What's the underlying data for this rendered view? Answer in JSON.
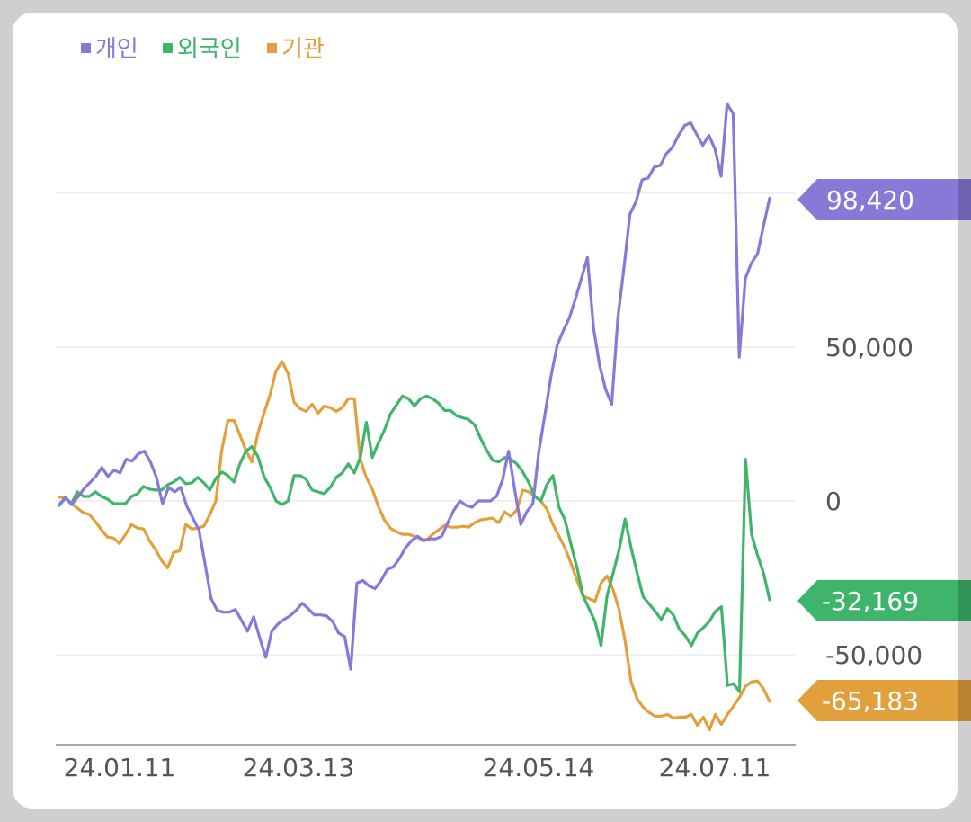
{
  "chart_data": {
    "type": "line",
    "legend_position": "top-left",
    "grid": "horizontal",
    "x_tick_labels": [
      "24.01.11",
      "24.03.13",
      "24.05.14",
      "24.07.11"
    ],
    "y_ticks": [
      {
        "value": 50000,
        "label": "50,000"
      },
      {
        "value": 0,
        "label": "0"
      },
      {
        "value": -50000,
        "label": "-50,000"
      }
    ],
    "series": [
      {
        "name": "개인",
        "color": "#8878d8",
        "end_label": "98,420",
        "values": [
          -1180,
          1170,
          -1180,
          1170,
          3820,
          5880,
          7940,
          10880,
          7940,
          10000,
          9120,
          13530,
          12940,
          15290,
          16180,
          12650,
          7650,
          -880,
          4410,
          2940,
          4410,
          -1760,
          -5590,
          -9410,
          -20590,
          -31760,
          -35590,
          -36180,
          -36180,
          -35290,
          -38820,
          -42350,
          -37650,
          -44410,
          -50880,
          -42350,
          -40000,
          -38530,
          -37350,
          -35590,
          -33240,
          -35000,
          -37060,
          -37060,
          -37350,
          -39120,
          -42940,
          -44120,
          -54710,
          -26760,
          -25880,
          -27650,
          -28530,
          -25880,
          -22350,
          -21470,
          -18820,
          -15290,
          -12940,
          -11470,
          -12940,
          -12350,
          -12350,
          -11470,
          -7060,
          -2940,
          0,
          -1470,
          -2060,
          0,
          0,
          0,
          1470,
          6760,
          16180,
          3820,
          -7650,
          -3530,
          -880,
          16180,
          28240,
          40590,
          50590,
          55290,
          59410,
          65590,
          72350,
          79120,
          56180,
          44120,
          36180,
          31470,
          59410,
          75590,
          93240,
          97350,
          104410,
          105000,
          108530,
          109120,
          112940,
          115000,
          118820,
          122060,
          122940,
          119120,
          115590,
          118820,
          114410,
          105590,
          129120,
          125880,
          46760,
          72350,
          77350,
          80290,
          89410,
          98420
        ]
      },
      {
        "name": "외국인",
        "color": "#3fb56b",
        "end_label": "-32,169",
        "values": [
          -1470,
          880,
          -880,
          2940,
          1470,
          1470,
          2940,
          1470,
          590,
          -880,
          -880,
          -880,
          1470,
          2350,
          4710,
          3820,
          3530,
          3530,
          5290,
          6180,
          7650,
          5590,
          5880,
          7650,
          5880,
          3530,
          7350,
          9410,
          8240,
          6180,
          12060,
          16180,
          17650,
          14410,
          7940,
          4410,
          0,
          -1180,
          0,
          8240,
          8240,
          7060,
          3530,
          2940,
          2350,
          4410,
          7650,
          9120,
          12060,
          9120,
          14120,
          25590,
          14120,
          18820,
          22940,
          28240,
          31180,
          34120,
          33240,
          30880,
          33240,
          34120,
          33240,
          31760,
          29410,
          29410,
          27650,
          27060,
          26470,
          24710,
          20290,
          16470,
          13240,
          12650,
          14120,
          13530,
          12060,
          9410,
          5880,
          1470,
          0,
          5290,
          8240,
          -2060,
          -6180,
          -14120,
          -21760,
          -30880,
          -35000,
          -39120,
          -47060,
          -30880,
          -23530,
          -15880,
          -5880,
          -15290,
          -23530,
          -31180,
          -33530,
          -35880,
          -38530,
          -35000,
          -37060,
          -41760,
          -43820,
          -47060,
          -42940,
          -41180,
          -39120,
          -35880,
          -34410,
          -60000,
          -59410,
          -62060,
          13530,
          -10880,
          -17650,
          -23530,
          -32169
        ]
      },
      {
        "name": "기관",
        "color": "#e2a03c",
        "end_label": "-65,183",
        "values": [
          1180,
          1180,
          -880,
          -2350,
          -3820,
          -4410,
          -6760,
          -9410,
          -11760,
          -12060,
          -13820,
          -10880,
          -7650,
          -8820,
          -9120,
          -12940,
          -15880,
          -19410,
          -21760,
          -16760,
          -16180,
          -7650,
          -9120,
          -8820,
          -8240,
          -4410,
          0,
          16760,
          26180,
          26180,
          21470,
          16470,
          12650,
          22060,
          28530,
          34410,
          42350,
          45290,
          41470,
          32060,
          30000,
          29120,
          31470,
          28530,
          30880,
          30290,
          29120,
          30290,
          33240,
          33240,
          13530,
          7650,
          3820,
          -1760,
          -6180,
          -8820,
          -10000,
          -10880,
          -10880,
          -11470,
          -12350,
          -12650,
          -10880,
          -9410,
          -7940,
          -8530,
          -8530,
          -8240,
          -8530,
          -7060,
          -6180,
          -5880,
          -5590,
          -7060,
          -3530,
          -5000,
          -2940,
          3530,
          2940,
          1470,
          0,
          -2650,
          -7650,
          -11470,
          -15290,
          -20290,
          -25880,
          -30880,
          -31760,
          -32650,
          -26760,
          -24410,
          -28820,
          -35290,
          -45590,
          -58820,
          -64410,
          -67060,
          -68820,
          -70000,
          -70000,
          -69410,
          -70590,
          -70290,
          -70290,
          -69410,
          -72940,
          -70290,
          -74410,
          -69410,
          -72650,
          -69410,
          -66760,
          -63820,
          -60290,
          -58820,
          -58530,
          -61180,
          -65183
        ]
      }
    ]
  }
}
